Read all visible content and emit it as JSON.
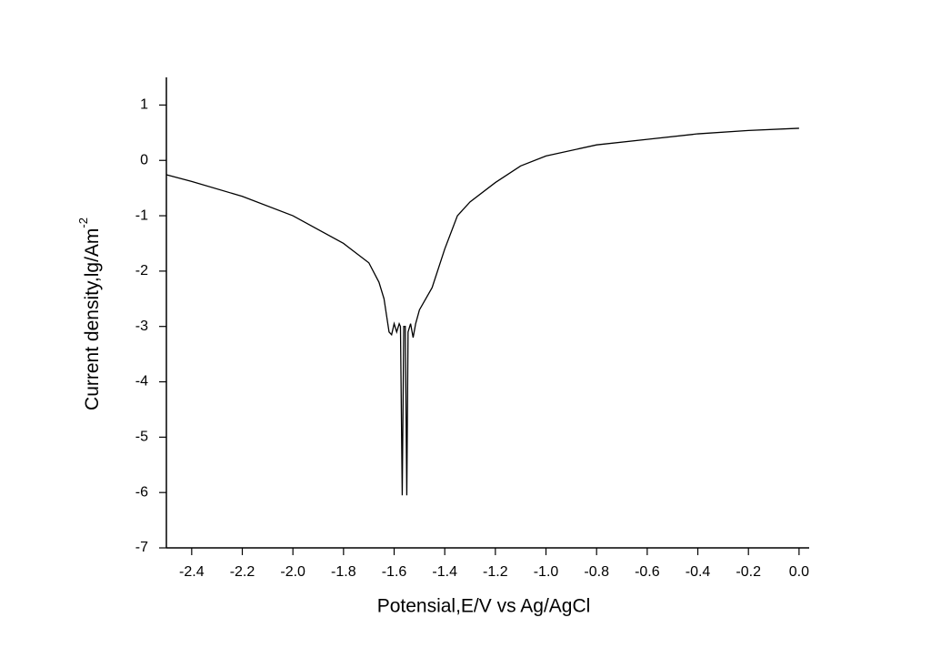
{
  "chart_data": {
    "type": "line",
    "xlabel": "Potensial,E/V vs Ag/AgCl",
    "ylabel": "Current density,lg/Am",
    "ylabel_superscript": "-2",
    "xlim": [
      -2.5,
      0.04
    ],
    "ylim": [
      -7,
      1.5
    ],
    "xticks": [
      -2.4,
      -2.2,
      {
        "value": -2.0,
        "label": "-2.0"
      },
      -1.8,
      -1.6,
      -1.4,
      -1.2,
      {
        "value": -1.0,
        "label": "-1.0"
      },
      -0.8,
      -0.6,
      -0.4,
      -0.2,
      {
        "value": 0.0,
        "label": "0.0"
      }
    ],
    "yticks": [
      1,
      0,
      -1,
      -2,
      -3,
      -4,
      -5,
      -6,
      -7
    ],
    "grid": false,
    "series": [
      {
        "color": "#000000",
        "x": [
          -2.5,
          -2.4,
          -2.2,
          -2.0,
          -1.8,
          -1.7,
          -1.66,
          -1.64,
          -1.63,
          -1.62,
          -1.61,
          -1.6,
          -1.59,
          -1.58,
          -1.575,
          -1.568,
          -1.562,
          -1.556,
          -1.55,
          -1.545,
          -1.535,
          -1.525,
          -1.515,
          -1.5,
          -1.45,
          -1.4,
          -1.35,
          -1.3,
          -1.2,
          -1.1,
          -1.0,
          -0.8,
          -0.6,
          -0.4,
          -0.2,
          0.0
        ],
        "values": [
          -0.26,
          -0.38,
          -0.65,
          -1.0,
          -1.5,
          -1.85,
          -2.2,
          -2.5,
          -2.8,
          -3.1,
          -3.15,
          -2.95,
          -3.1,
          -2.95,
          -3.0,
          -6.05,
          -3.0,
          -3.0,
          -6.05,
          -3.1,
          -2.95,
          -3.2,
          -2.95,
          -2.7,
          -2.3,
          -1.6,
          -1.0,
          -0.75,
          -0.4,
          -0.1,
          0.08,
          0.28,
          0.38,
          0.48,
          0.54,
          0.58
        ]
      }
    ]
  }
}
